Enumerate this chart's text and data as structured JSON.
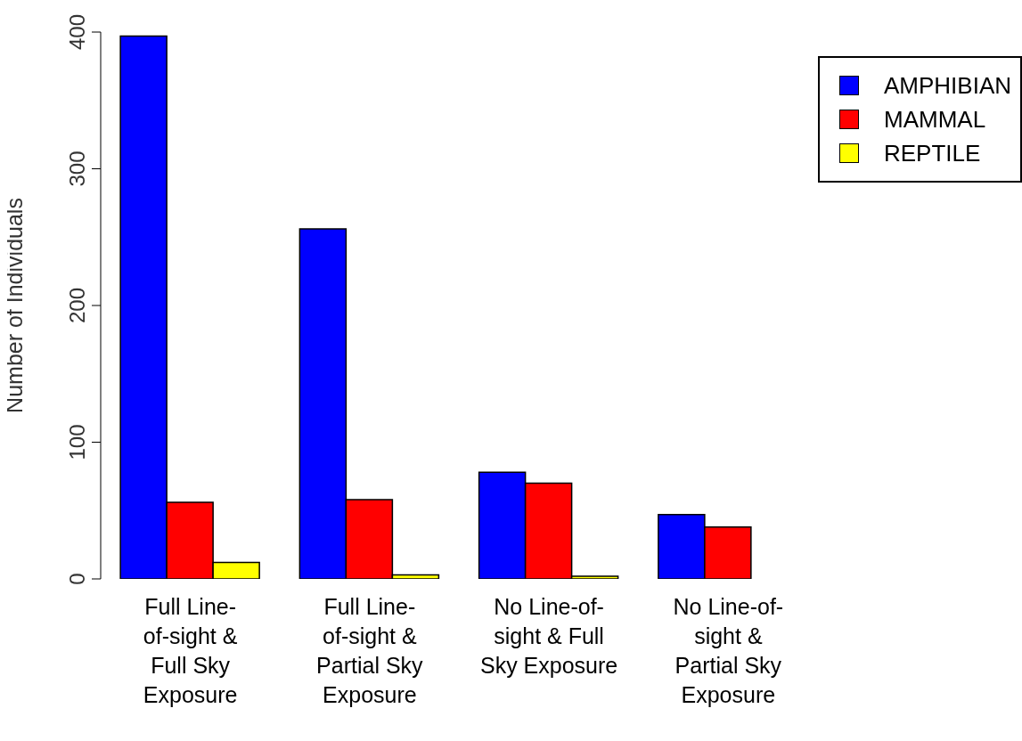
{
  "chart_data": {
    "type": "bar",
    "ylabel": "Number of Individuals",
    "categories": [
      "Full Line-of-sight & Full Sky Exposure",
      "Full Line-of-sight & Partial Sky Exposure",
      "No Line-of-sight & Full Sky Exposure",
      "No Line-of-sight & Partial Sky Exposure"
    ],
    "series": [
      {
        "name": "AMPHIBIAN",
        "color": "#0000ff",
        "values": [
          397,
          256,
          78,
          47
        ]
      },
      {
        "name": "MAMMAL",
        "color": "#ff0000",
        "values": [
          56,
          58,
          70,
          38
        ]
      },
      {
        "name": "REPTILE",
        "color": "#ffff00",
        "values": [
          12,
          3,
          2,
          0
        ]
      }
    ],
    "ylim": [
      0,
      400
    ],
    "yticks": [
      0,
      100,
      200,
      300,
      400
    ],
    "grid": false,
    "legend": "top right"
  }
}
